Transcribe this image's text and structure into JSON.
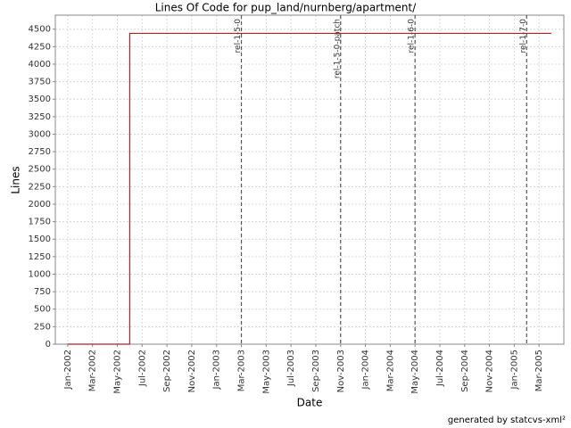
{
  "chart_data": {
    "type": "line",
    "title": "Lines Of Code for pup_land/nurnberg/apartment/",
    "xlabel": "Date",
    "ylabel": "Lines",
    "footer": "generated by statcvs-xml²",
    "step": true,
    "grid": true,
    "x": [
      "2002-01",
      "2002-06",
      "2005-04"
    ],
    "series": [
      {
        "name": "Lines",
        "color": "#b22222",
        "values": [
          0,
          4440,
          4440
        ]
      }
    ],
    "xlim": [
      "2001-12",
      "2005-05"
    ],
    "xticks": [
      {
        "value": "2002-01",
        "label": "Jan-2002"
      },
      {
        "value": "2002-03",
        "label": "Mar-2002"
      },
      {
        "value": "2002-05",
        "label": "May-2002"
      },
      {
        "value": "2002-07",
        "label": "Jul-2002"
      },
      {
        "value": "2002-09",
        "label": "Sep-2002"
      },
      {
        "value": "2002-11",
        "label": "Nov-2002"
      },
      {
        "value": "2003-01",
        "label": "Jan-2003"
      },
      {
        "value": "2003-03",
        "label": "Mar-2003"
      },
      {
        "value": "2003-05",
        "label": "May-2003"
      },
      {
        "value": "2003-07",
        "label": "Jul-2003"
      },
      {
        "value": "2003-09",
        "label": "Sep-2003"
      },
      {
        "value": "2003-11",
        "label": "Nov-2003"
      },
      {
        "value": "2004-01",
        "label": "Jan-2004"
      },
      {
        "value": "2004-03",
        "label": "Mar-2004"
      },
      {
        "value": "2004-05",
        "label": "May-2004"
      },
      {
        "value": "2004-07",
        "label": "Jul-2004"
      },
      {
        "value": "2004-09",
        "label": "Sep-2004"
      },
      {
        "value": "2004-11",
        "label": "Nov-2004"
      },
      {
        "value": "2005-01",
        "label": "Jan-2005"
      },
      {
        "value": "2005-03",
        "label": "Mar-2005"
      }
    ],
    "ylim": [
      0,
      4700
    ],
    "yticks": [
      0,
      250,
      500,
      750,
      1000,
      1250,
      1500,
      1750,
      2000,
      2250,
      2500,
      2750,
      3000,
      3250,
      3500,
      3750,
      4000,
      4250,
      4500
    ],
    "markers": [
      {
        "x": "2003-03",
        "label": "rel-1-5-0"
      },
      {
        "x": "2003-11",
        "label": "rel-1-5-0-patch"
      },
      {
        "x": "2004-05",
        "label": "rel-1-6-0"
      },
      {
        "x": "2005-02",
        "label": "rel-1-7-0"
      }
    ]
  }
}
